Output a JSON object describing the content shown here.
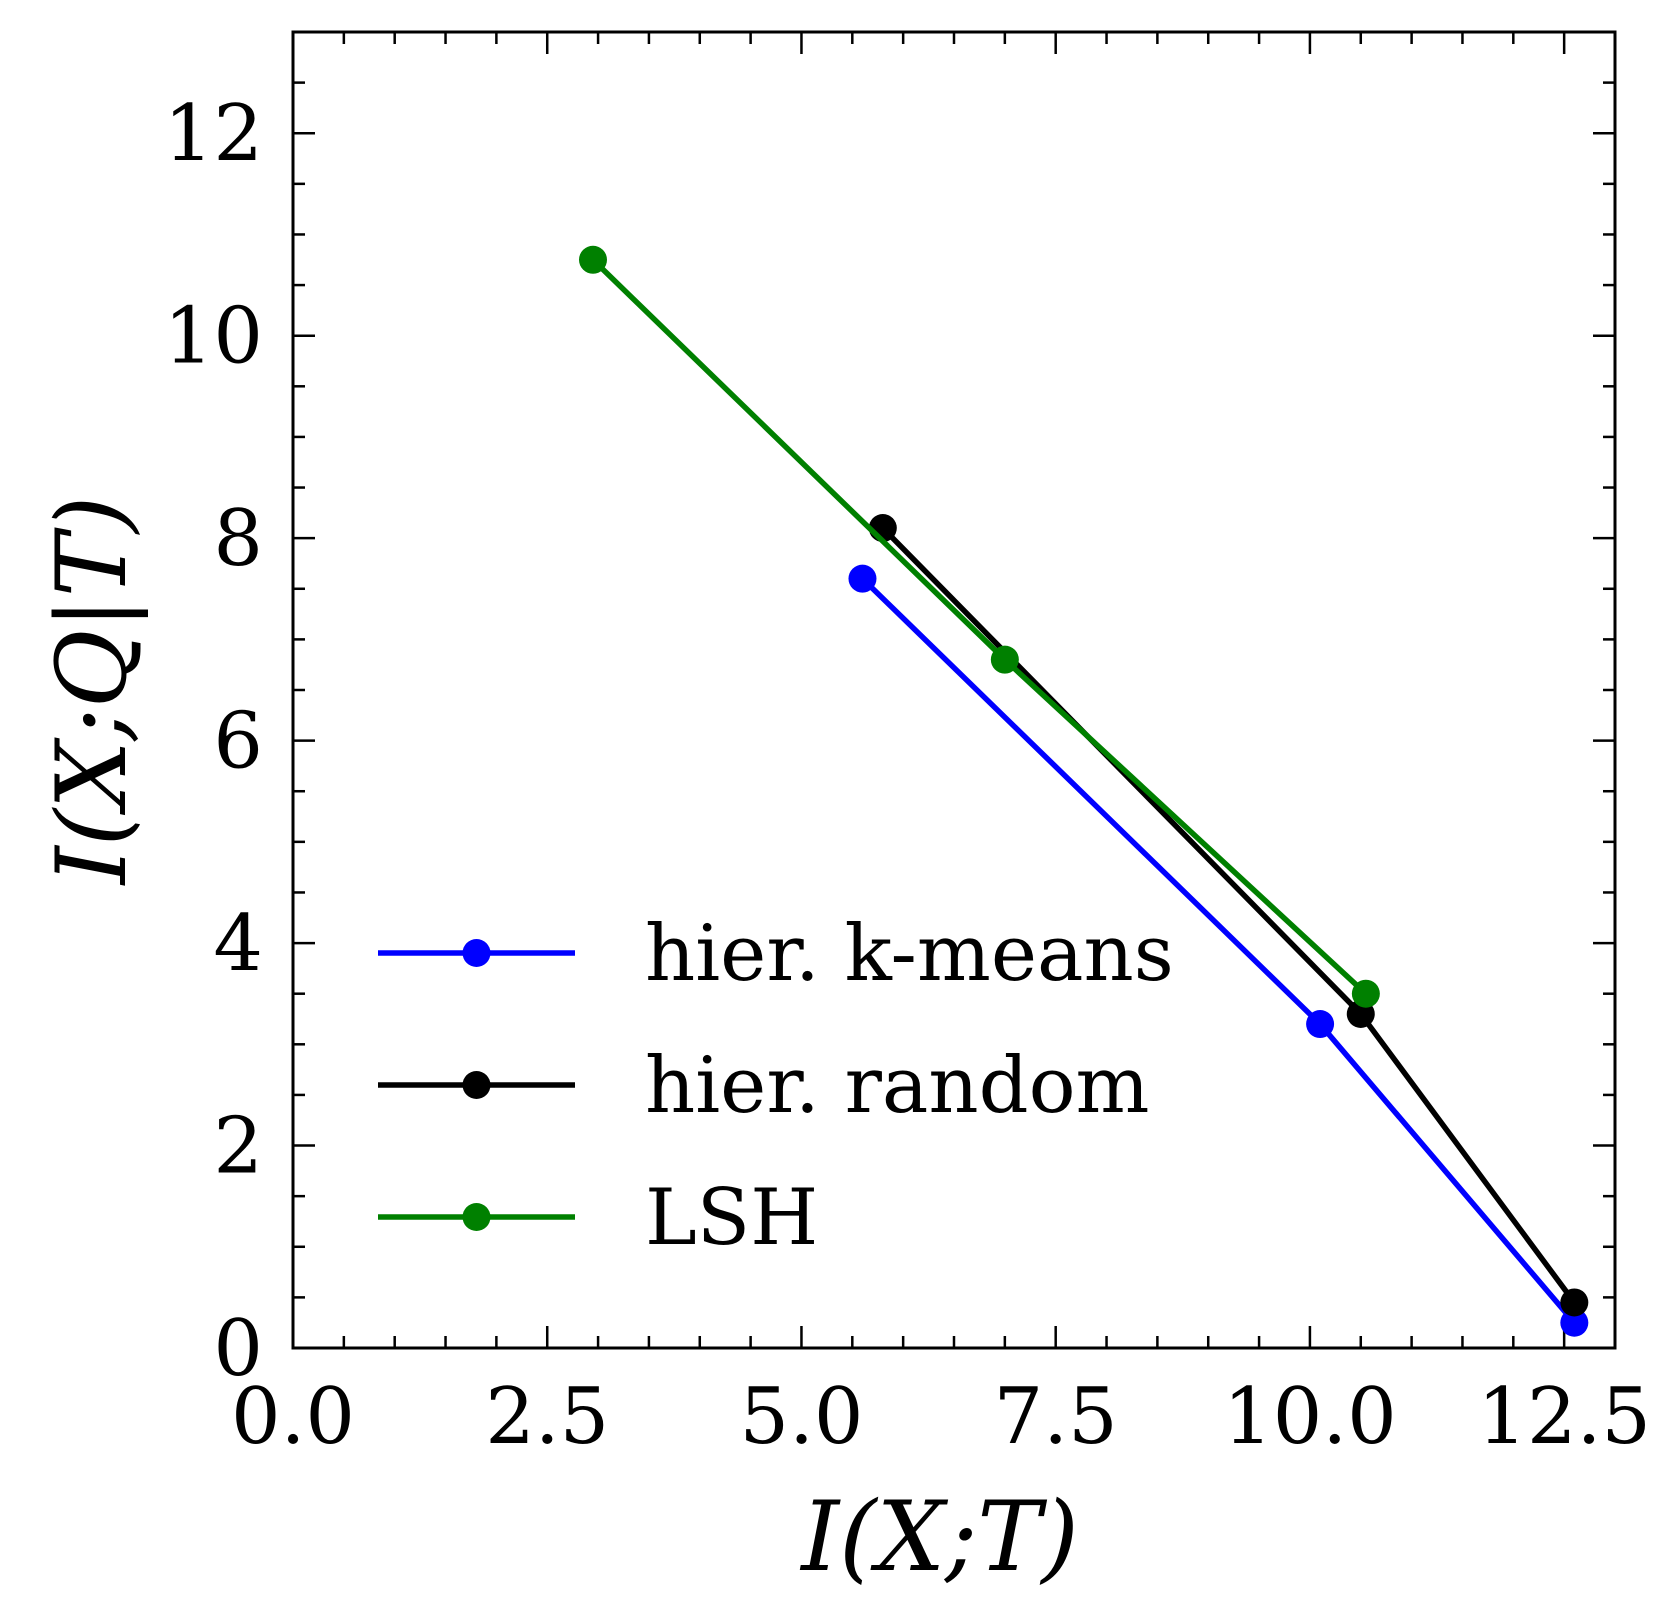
{
  "chart_data": {
    "type": "line",
    "title": "",
    "xlabel": "I(X;T)",
    "ylabel": "I(X;Q|T)",
    "xlim": [
      0,
      13
    ],
    "ylim": [
      0,
      13
    ],
    "x_ticks": [
      "0.0",
      "2.5",
      "5.0",
      "7.5",
      "10.0",
      "12.5"
    ],
    "x_tick_values": [
      0,
      2.5,
      5,
      7.5,
      10,
      12.5
    ],
    "y_ticks": [
      "0",
      "2",
      "4",
      "6",
      "8",
      "10",
      "12"
    ],
    "y_tick_values": [
      0,
      2,
      4,
      6,
      8,
      10,
      12
    ],
    "legend_position": "lower-left",
    "series": [
      {
        "name": "hier. k-means",
        "color": "#0000ff",
        "x": [
          5.6,
          10.1,
          12.6
        ],
        "y": [
          7.6,
          3.2,
          0.25
        ]
      },
      {
        "name": "hier. random",
        "color": "#000000",
        "x": [
          5.8,
          10.5,
          12.6
        ],
        "y": [
          8.1,
          3.3,
          0.45
        ]
      },
      {
        "name": "LSH",
        "color": "#008000",
        "x": [
          2.95,
          7.0,
          10.55
        ],
        "y": [
          10.75,
          6.8,
          3.5
        ]
      }
    ]
  }
}
